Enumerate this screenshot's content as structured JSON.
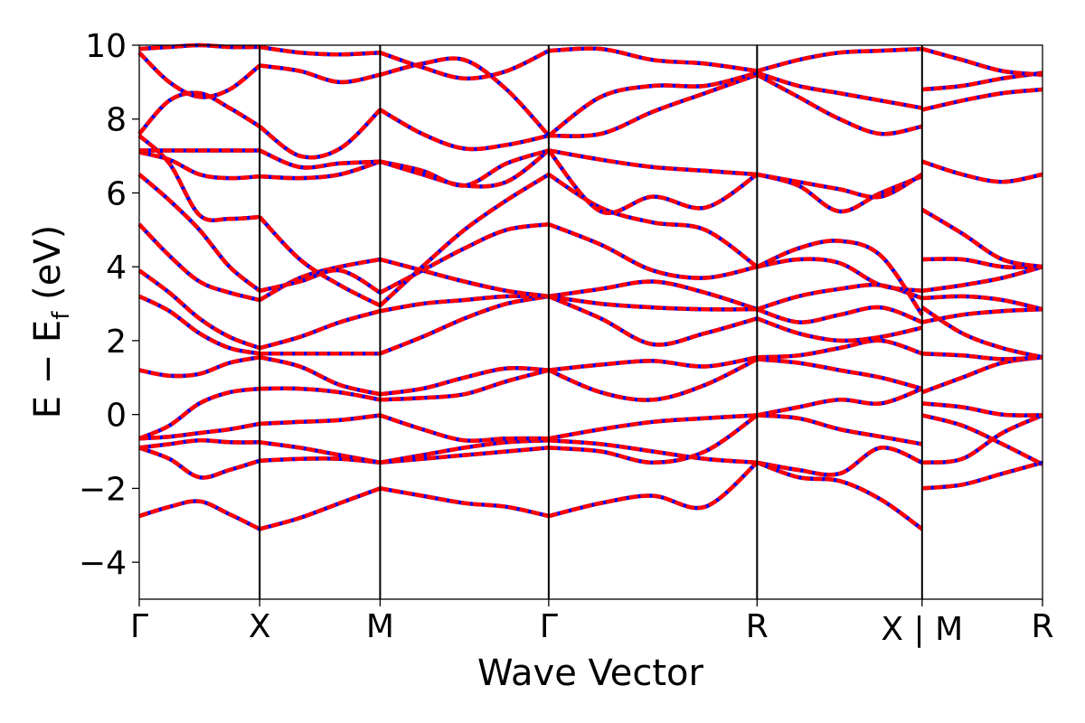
{
  "chart_data": {
    "type": "line",
    "title": "",
    "xlabel": "Wave Vector",
    "ylabel_parts": {
      "main": "E − E",
      "sub": "f",
      "unit": " (eV)"
    },
    "ylim": [
      -5,
      10
    ],
    "yticks": [
      -4,
      -2,
      0,
      2,
      4,
      6,
      8,
      10
    ],
    "ytick_labels": [
      "−4",
      "−2",
      "0",
      "2",
      "4",
      "6",
      "8",
      "10"
    ],
    "xlim": [
      0,
      7.5
    ],
    "kpoints": [
      {
        "label": "Γ",
        "x": 0.0
      },
      {
        "label": "X",
        "x": 1.0
      },
      {
        "label": "M",
        "x": 2.0
      },
      {
        "label": "Γ",
        "x": 3.4
      },
      {
        "label": "R",
        "x": 5.13
      },
      {
        "label": "X | M",
        "x": 6.5
      },
      {
        "label": "R",
        "x": 7.5
      }
    ],
    "grid": false,
    "legend": "none",
    "colors": {
      "band_a": "#ff0000",
      "band_b": "#0000ff"
    },
    "segment_bounds": [
      0,
      1.0,
      2.0,
      3.4,
      5.13,
      6.5,
      7.5
    ],
    "bands": [
      [
        [
          -2.75,
          -2.5,
          -2.35,
          -2.7,
          -3.1
        ],
        [
          -3.1,
          -2.8,
          -2.4,
          -2.0
        ],
        [
          -2.0,
          -2.2,
          -2.4,
          -2.5,
          -2.75
        ],
        [
          -2.75,
          -2.4,
          -2.2,
          -2.5,
          -1.3
        ],
        [
          -1.3,
          -1.7,
          -1.8,
          -2.3,
          -3.1
        ],
        [
          -2.0,
          -1.9,
          -1.6,
          -1.3
        ]
      ],
      [
        [
          -0.9,
          -1.2,
          -1.7,
          -1.5,
          -1.25
        ],
        [
          -1.25,
          -1.2,
          -1.2,
          -1.3
        ],
        [
          -1.3,
          -1.2,
          -1.1,
          -1.0,
          -0.9
        ],
        [
          -0.9,
          -1.0,
          -1.3,
          -1.0,
          -0.02
        ],
        [
          -1.3,
          -1.5,
          -1.6,
          -0.9,
          -1.3
        ],
        [
          -1.3,
          -1.2,
          -0.5,
          -0.02
        ]
      ],
      [
        [
          -0.9,
          -0.8,
          -0.7,
          -0.75,
          -0.75
        ],
        [
          -0.75,
          -0.9,
          -1.1,
          -1.3
        ],
        [
          -1.3,
          -1.1,
          -0.9,
          -0.75,
          -0.7
        ],
        [
          -0.7,
          -0.8,
          -1.0,
          -1.2,
          -1.3
        ],
        [
          -0.02,
          -0.1,
          -0.4,
          -0.6,
          -0.8
        ],
        [
          -0.02,
          -0.3,
          -0.8,
          -1.35
        ]
      ],
      [
        [
          -0.65,
          -0.6,
          -0.5,
          -0.4,
          -0.25
        ],
        [
          -0.25,
          -0.2,
          -0.15,
          -0.02
        ],
        [
          -0.02,
          -0.4,
          -0.7,
          -0.65,
          -0.65
        ],
        [
          -0.65,
          -0.4,
          -0.2,
          -0.1,
          -0.02
        ],
        [
          -0.02,
          0.2,
          0.4,
          0.3,
          0.7
        ],
        [
          0.3,
          0.2,
          0.0,
          -0.02
        ]
      ],
      [
        [
          -0.65,
          -0.3,
          0.3,
          0.6,
          0.7
        ],
        [
          0.7,
          0.7,
          0.6,
          0.4
        ],
        [
          0.4,
          0.45,
          0.55,
          0.9,
          1.2
        ],
        [
          1.2,
          0.6,
          0.4,
          0.8,
          1.5
        ],
        [
          1.5,
          1.4,
          1.2,
          1.0,
          0.7
        ],
        [
          0.6,
          1.0,
          1.4,
          1.55
        ]
      ],
      [
        [
          1.2,
          1.05,
          1.1,
          1.4,
          1.55
        ],
        [
          1.55,
          1.3,
          0.8,
          0.55
        ],
        [
          0.55,
          0.7,
          1.0,
          1.25,
          1.2
        ],
        [
          1.2,
          1.35,
          1.45,
          1.3,
          1.55
        ],
        [
          1.55,
          1.6,
          1.8,
          2.0,
          1.65
        ],
        [
          1.65,
          1.6,
          1.5,
          1.55
        ]
      ],
      [
        [
          3.2,
          2.8,
          2.2,
          1.8,
          1.65
        ],
        [
          1.65,
          1.65,
          1.65,
          1.65
        ],
        [
          1.65,
          2.1,
          2.6,
          3.0,
          3.2
        ],
        [
          3.2,
          2.6,
          1.9,
          2.2,
          2.6
        ],
        [
          2.6,
          2.2,
          2.0,
          2.1,
          2.35
        ],
        [
          2.9,
          2.2,
          1.8,
          1.55
        ]
      ],
      [
        [
          3.9,
          3.3,
          2.6,
          2.1,
          1.8
        ],
        [
          1.8,
          2.1,
          2.5,
          2.8
        ],
        [
          2.8,
          3.0,
          3.1,
          3.2,
          3.2
        ],
        [
          3.2,
          3.4,
          3.6,
          3.3,
          2.85
        ],
        [
          2.85,
          2.5,
          2.7,
          2.9,
          2.5
        ],
        [
          2.5,
          2.7,
          2.8,
          2.85
        ]
      ],
      [
        [
          5.15,
          4.3,
          3.6,
          3.3,
          3.1
        ],
        [
          3.1,
          3.7,
          4.0,
          4.2
        ],
        [
          4.2,
          3.9,
          3.6,
          3.35,
          3.2
        ],
        [
          3.2,
          3.0,
          2.9,
          2.85,
          2.85
        ],
        [
          2.85,
          3.2,
          3.4,
          3.5,
          3.15
        ],
        [
          3.15,
          3.2,
          3.1,
          2.85
        ]
      ],
      [
        [
          6.5,
          5.8,
          5.0,
          4.0,
          3.35
        ],
        [
          3.35,
          3.6,
          3.9,
          3.3
        ],
        [
          3.3,
          3.9,
          4.5,
          5.0,
          5.15
        ],
        [
          5.15,
          4.6,
          3.9,
          3.7,
          4.0
        ],
        [
          4.0,
          4.2,
          4.1,
          3.5,
          3.35
        ],
        [
          3.35,
          3.5,
          3.7,
          4.0
        ]
      ],
      [
        [
          7.55,
          6.8,
          5.4,
          5.3,
          5.35
        ],
        [
          5.35,
          4.2,
          3.5,
          2.95
        ],
        [
          2.95,
          4.0,
          5.0,
          5.8,
          6.5
        ],
        [
          6.5,
          5.6,
          5.2,
          5.0,
          4.0
        ],
        [
          4.0,
          4.5,
          4.7,
          4.3,
          2.7
        ],
        [
          4.2,
          4.2,
          4.0,
          4.0
        ]
      ],
      [
        [
          7.1,
          6.9,
          6.5,
          6.4,
          6.45
        ],
        [
          6.45,
          6.4,
          6.5,
          6.85
        ],
        [
          6.85,
          6.5,
          6.2,
          6.3,
          7.15
        ],
        [
          7.15,
          6.9,
          6.7,
          6.6,
          6.5
        ],
        [
          6.5,
          6.2,
          5.5,
          6.0,
          6.45
        ],
        [
          5.55,
          4.9,
          4.2,
          4.0
        ]
      ],
      [
        [
          7.15,
          7.15,
          7.15,
          7.15,
          7.15
        ],
        [
          7.15,
          6.7,
          6.8,
          6.85
        ],
        [
          6.85,
          6.6,
          6.2,
          6.8,
          7.15
        ],
        [
          7.15,
          5.5,
          5.9,
          5.6,
          6.5
        ],
        [
          6.5,
          6.3,
          6.1,
          5.9,
          6.5
        ],
        [
          6.85,
          6.5,
          6.3,
          6.5
        ]
      ],
      [
        [
          7.6,
          8.5,
          8.7,
          8.3,
          7.8
        ],
        [
          7.8,
          7.0,
          7.2,
          8.25
        ],
        [
          8.25,
          7.6,
          7.2,
          7.3,
          7.55
        ],
        [
          7.55,
          7.6,
          8.2,
          8.7,
          9.2
        ],
        [
          9.2,
          8.6,
          8.0,
          7.6,
          7.8
        ],
        [
          8.25,
          8.5,
          8.7,
          8.8
        ]
      ],
      [
        [
          9.8,
          9.0,
          8.6,
          8.8,
          9.45
        ],
        [
          9.45,
          9.3,
          9.0,
          9.2
        ],
        [
          9.2,
          9.5,
          9.6,
          8.8,
          7.55
        ],
        [
          7.55,
          8.6,
          8.9,
          8.9,
          9.25
        ],
        [
          9.25,
          8.9,
          8.7,
          8.5,
          8.3
        ],
        [
          8.8,
          8.9,
          9.1,
          9.25
        ]
      ],
      [
        [
          9.9,
          9.95,
          10.0,
          9.95,
          9.95
        ],
        [
          9.95,
          9.8,
          9.75,
          9.8
        ],
        [
          9.8,
          9.4,
          9.1,
          9.3,
          9.85
        ],
        [
          9.85,
          9.9,
          9.6,
          9.5,
          9.3
        ],
        [
          9.3,
          9.6,
          9.8,
          9.85,
          9.9
        ],
        [
          9.9,
          9.6,
          9.3,
          9.2
        ]
      ]
    ]
  }
}
